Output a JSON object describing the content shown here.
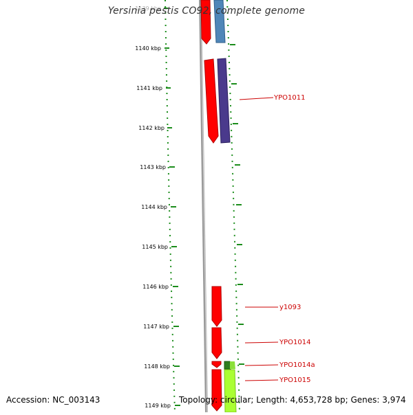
{
  "title": "Yersinia pestis CO92, complete genome",
  "accession_text": "Accession: NC_003143",
  "summary_text": "Topology: circular; Length: 4,653,728 bp; Genes: 3,974",
  "ruler": {
    "ticks": [
      "1139 kbp",
      "1140 kbp",
      "1141 kbp",
      "1142 kbp",
      "1143 kbp",
      "1144 kbp",
      "1145 kbp",
      "1146 kbp",
      "1147 kbp",
      "1148 kbp",
      "1149 kbp"
    ]
  },
  "genes": [
    {
      "label": "YPO1011"
    },
    {
      "label": "y1093"
    },
    {
      "label": "YPO1014"
    },
    {
      "label": "YPO1014a"
    },
    {
      "label": "YPO1015"
    }
  ],
  "colors": {
    "forward": "#ff0000",
    "blue": "#4f86b8",
    "purple": "#4a3a8c",
    "green_dark": "#2e7d1e",
    "green_light": "#aaff33",
    "backbone": "#888888",
    "tick": "#1a8c1a",
    "label": "#cc0000"
  }
}
